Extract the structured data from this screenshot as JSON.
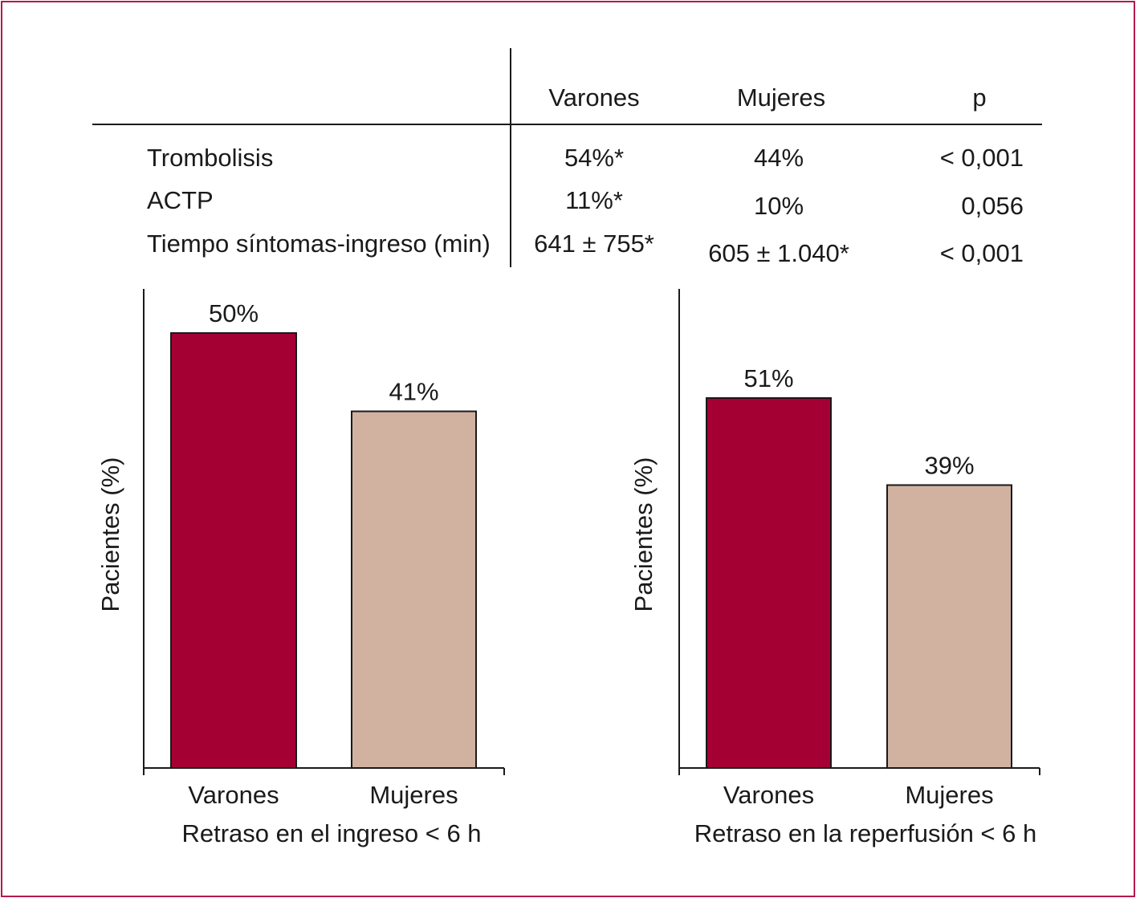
{
  "table": {
    "columns": [
      "Varones",
      "Mujeres",
      "p"
    ],
    "rows": [
      {
        "label": "Trombolisis",
        "varones": "54%*",
        "mujeres": "44%",
        "p": "< 0,001"
      },
      {
        "label": "ACTP",
        "varones": "11%*",
        "mujeres": "10%",
        "p": "0,056"
      },
      {
        "label": "Tiempo síntomas-ingreso (min)",
        "varones": "641 ± 755*",
        "mujeres": "605 ± 1.040*",
        "p": "< 0,001"
      }
    ]
  },
  "colors": {
    "varones": "#a50034",
    "mujeres": "#d1b2a0",
    "frame": "#b5194a"
  },
  "chart_data": [
    {
      "type": "bar",
      "title": "",
      "xlabel": "Retraso en el ingreso < 6 h",
      "ylabel": "Pacientes (%)",
      "categories": [
        "Varones",
        "Mujeres"
      ],
      "values": [
        50,
        41
      ],
      "data_labels": [
        "50%",
        "41%"
      ],
      "ylim": [
        0,
        50
      ]
    },
    {
      "type": "bar",
      "title": "",
      "xlabel": "Retraso en la reperfusión < 6 h",
      "ylabel": "Pacientes (%)",
      "categories": [
        "Varones",
        "Mujeres"
      ],
      "values": [
        51,
        39
      ],
      "data_labels": [
        "51%",
        "39%"
      ],
      "ylim": [
        0,
        51
      ]
    }
  ]
}
